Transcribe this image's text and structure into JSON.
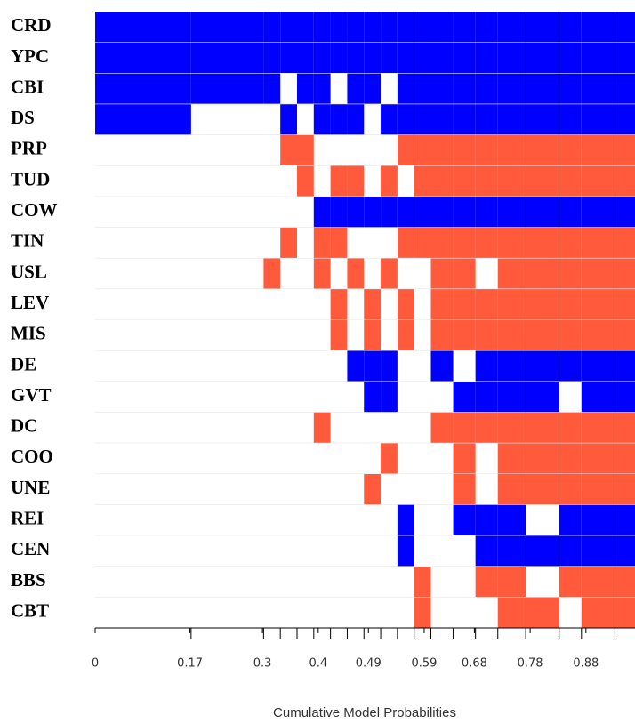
{
  "chart_data": {
    "type": "image",
    "xlabel": "Cumulative Model Probabilities",
    "categories": [
      "CRD",
      "YPC",
      "CBI",
      "DS",
      "PRP",
      "TUD",
      "COW",
      "TIN",
      "USL",
      "LEV",
      "MIS",
      "DE",
      "GVT",
      "DC",
      "COO",
      "UNE",
      "REI",
      "CEN",
      "BBS",
      "CBT"
    ],
    "colors": {
      "positive": "#0000ff",
      "negative": "#ff5a3c"
    },
    "xlim": [
      0,
      0.968
    ],
    "xticks": [
      0,
      0.17,
      0.3,
      0.4,
      0.49,
      0.59,
      0.68,
      0.78,
      0.88
    ],
    "models": [
      {
        "pmp": 0.172,
        "signs": [
          1,
          1,
          1,
          1,
          0,
          0,
          0,
          0,
          0,
          0,
          0,
          0,
          0,
          0,
          0,
          0,
          0,
          0,
          0,
          0
        ]
      },
      {
        "pmp": 0.13,
        "signs": [
          1,
          1,
          1,
          0,
          0,
          0,
          0,
          0,
          0,
          0,
          0,
          0,
          0,
          0,
          0,
          0,
          0,
          0,
          0,
          0
        ]
      },
      {
        "pmp": 0.03,
        "signs": [
          1,
          1,
          1,
          0,
          0,
          0,
          0,
          0,
          -1,
          0,
          0,
          0,
          0,
          0,
          0,
          0,
          0,
          0,
          0,
          0
        ]
      },
      {
        "pmp": 0.03,
        "signs": [
          1,
          1,
          0,
          1,
          -1,
          0,
          0,
          -1,
          0,
          0,
          0,
          0,
          0,
          0,
          0,
          0,
          0,
          0,
          0,
          0
        ]
      },
      {
        "pmp": 0.03,
        "signs": [
          1,
          1,
          1,
          0,
          -1,
          -1,
          0,
          0,
          0,
          0,
          0,
          0,
          0,
          0,
          0,
          0,
          0,
          0,
          0,
          0
        ]
      },
      {
        "pmp": 0.03,
        "signs": [
          1,
          1,
          1,
          1,
          0,
          0,
          1,
          -1,
          -1,
          0,
          0,
          0,
          0,
          -1,
          0,
          0,
          0,
          0,
          0,
          0
        ]
      },
      {
        "pmp": 0.03,
        "signs": [
          1,
          1,
          0,
          1,
          0,
          -1,
          1,
          -1,
          0,
          -1,
          -1,
          0,
          0,
          0,
          0,
          0,
          0,
          0,
          0,
          0
        ]
      },
      {
        "pmp": 0.03,
        "signs": [
          1,
          1,
          1,
          1,
          0,
          -1,
          1,
          0,
          -1,
          0,
          0,
          1,
          0,
          0,
          0,
          0,
          0,
          0,
          0,
          0
        ]
      },
      {
        "pmp": 0.03,
        "signs": [
          1,
          1,
          1,
          0,
          0,
          0,
          1,
          0,
          0,
          -1,
          -1,
          1,
          1,
          0,
          0,
          -1,
          0,
          0,
          0,
          0
        ]
      },
      {
        "pmp": 0.03,
        "signs": [
          1,
          1,
          0,
          1,
          0,
          -1,
          1,
          0,
          -1,
          0,
          0,
          1,
          1,
          0,
          -1,
          0,
          0,
          0,
          0,
          0
        ]
      },
      {
        "pmp": 0.03,
        "signs": [
          1,
          1,
          1,
          1,
          -1,
          0,
          1,
          -1,
          0,
          -1,
          -1,
          0,
          0,
          0,
          0,
          0,
          1,
          1,
          0,
          0
        ]
      },
      {
        "pmp": 0.03,
        "signs": [
          1,
          1,
          1,
          1,
          -1,
          -1,
          1,
          -1,
          0,
          0,
          0,
          0,
          0,
          0,
          0,
          0,
          0,
          0,
          -1,
          -1
        ]
      },
      {
        "pmp": 0.04,
        "signs": [
          1,
          1,
          1,
          1,
          -1,
          -1,
          1,
          -1,
          -1,
          -1,
          -1,
          1,
          0,
          -1,
          0,
          0,
          0,
          0,
          0,
          0
        ]
      },
      {
        "pmp": 0.04,
        "signs": [
          1,
          1,
          1,
          1,
          -1,
          -1,
          1,
          -1,
          -1,
          -1,
          -1,
          0,
          1,
          -1,
          -1,
          -1,
          1,
          0,
          0,
          0
        ]
      },
      {
        "pmp": 0.04,
        "signs": [
          1,
          1,
          1,
          1,
          -1,
          -1,
          1,
          -1,
          0,
          -1,
          -1,
          1,
          1,
          -1,
          0,
          0,
          1,
          1,
          -1,
          0
        ]
      },
      {
        "pmp": 0.05,
        "signs": [
          1,
          1,
          1,
          1,
          -1,
          -1,
          1,
          -1,
          -1,
          -1,
          -1,
          1,
          1,
          -1,
          -1,
          -1,
          1,
          1,
          -1,
          -1
        ]
      },
      {
        "pmp": 0.06,
        "signs": [
          1,
          1,
          1,
          1,
          -1,
          -1,
          1,
          -1,
          -1,
          -1,
          -1,
          1,
          1,
          -1,
          -1,
          -1,
          0,
          1,
          0,
          -1
        ]
      },
      {
        "pmp": 0.04,
        "signs": [
          1,
          1,
          1,
          1,
          -1,
          -1,
          1,
          -1,
          -1,
          -1,
          -1,
          1,
          0,
          -1,
          -1,
          -1,
          1,
          1,
          -1,
          0
        ]
      },
      {
        "pmp": 0.06,
        "signs": [
          1,
          1,
          1,
          1,
          -1,
          -1,
          1,
          -1,
          -1,
          -1,
          -1,
          1,
          1,
          -1,
          -1,
          -1,
          1,
          1,
          -1,
          -1
        ]
      },
      {
        "pmp": 0.05,
        "signs": [
          1,
          1,
          1,
          1,
          -1,
          -1,
          1,
          -1,
          -1,
          -1,
          -1,
          1,
          1,
          -1,
          -1,
          -1,
          1,
          1,
          -1,
          -1
        ]
      },
      {
        "pmp": 0.046,
        "signs": [
          1,
          1,
          1,
          1,
          -1,
          -1,
          1,
          -1,
          -1,
          -1,
          -1,
          1,
          1,
          -1,
          -1,
          -1,
          1,
          1,
          -1,
          -1
        ]
      }
    ]
  }
}
